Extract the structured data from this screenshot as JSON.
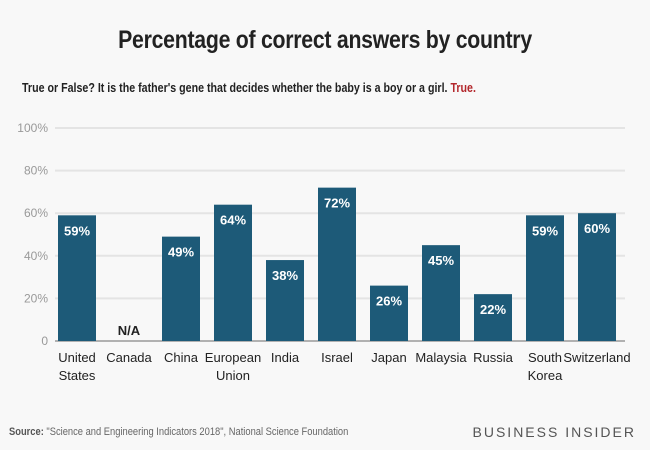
{
  "chart_data": {
    "type": "bar",
    "title": "Percentage of correct answers by country",
    "subtitle": "True or False? It is the father's gene that decides whether the baby is a boy or a girl.",
    "subtitle_answer": "True.",
    "categories": [
      [
        "United",
        "States"
      ],
      [
        "Canada"
      ],
      [
        "China"
      ],
      [
        "European",
        "Union"
      ],
      [
        "India"
      ],
      [
        "Israel"
      ],
      [
        "Japan"
      ],
      [
        "Malaysia"
      ],
      [
        "Russia"
      ],
      [
        "South",
        "Korea"
      ],
      [
        "Switzerland"
      ]
    ],
    "values": [
      59,
      null,
      49,
      64,
      38,
      72,
      26,
      45,
      22,
      59,
      60
    ],
    "data_labels": [
      "59%",
      "N/A",
      "49%",
      "64%",
      "38%",
      "72%",
      "26%",
      "45%",
      "22%",
      "59%",
      "60%"
    ],
    "yticks": [
      "0",
      "20%",
      "40%",
      "60%",
      "80%",
      "100%"
    ],
    "ylim": [
      0,
      100
    ],
    "grid": true,
    "colors": {
      "bar": "#1d5a78",
      "answer": "#b3272c"
    }
  },
  "footer": {
    "source_label": "Source:",
    "source_text": " \"Science and Engineering Indicators 2018\", National Science Foundation",
    "brand": "BUSINESS INSIDER"
  }
}
